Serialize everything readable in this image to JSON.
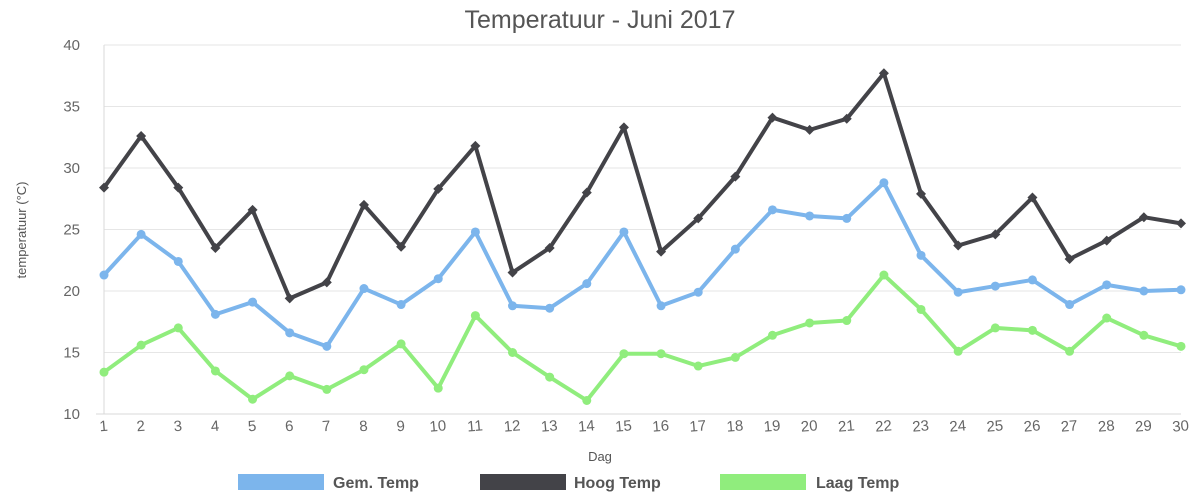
{
  "chart_data": {
    "type": "line",
    "title": "Temperatuur - Juni 2017",
    "xlabel": "Dag",
    "ylabel": "temperatuur (°C)",
    "ylim": [
      10,
      40
    ],
    "y_ticks": [
      10,
      15,
      20,
      25,
      30,
      35,
      40
    ],
    "grid": true,
    "legend_position": "bottom",
    "categories": [
      "1",
      "2",
      "3",
      "4",
      "5",
      "6",
      "7",
      "8",
      "9",
      "10",
      "11",
      "12",
      "13",
      "14",
      "15",
      "16",
      "17",
      "18",
      "19",
      "20",
      "21",
      "22",
      "23",
      "24",
      "25",
      "26",
      "27",
      "28",
      "29",
      "30"
    ],
    "series": [
      {
        "name": "Gem. Temp",
        "color": "#7cb5ec",
        "values": [
          21.3,
          24.6,
          22.4,
          18.1,
          19.1,
          16.6,
          15.5,
          20.2,
          18.9,
          21.0,
          24.8,
          18.8,
          18.6,
          20.6,
          24.8,
          18.8,
          19.9,
          23.4,
          26.6,
          26.1,
          25.9,
          28.8,
          22.9,
          19.9,
          20.4,
          20.9,
          18.9,
          20.5,
          20.0,
          20.1
        ]
      },
      {
        "name": "Hoog Temp",
        "color": "#434348",
        "values": [
          28.4,
          32.6,
          28.4,
          23.5,
          26.6,
          19.4,
          20.7,
          27.0,
          23.6,
          28.3,
          31.8,
          21.5,
          23.5,
          28.0,
          33.3,
          23.2,
          25.9,
          29.3,
          34.1,
          33.1,
          34.0,
          37.7,
          27.9,
          23.7,
          24.6,
          27.6,
          22.6,
          24.1,
          26.0,
          25.5
        ]
      },
      {
        "name": "Laag Temp",
        "color": "#90ed7d",
        "values": [
          13.4,
          15.6,
          17.0,
          13.5,
          11.2,
          13.1,
          12.0,
          13.6,
          15.7,
          12.1,
          18.0,
          15.0,
          13.0,
          11.1,
          14.9,
          14.9,
          13.9,
          14.6,
          16.4,
          17.4,
          17.6,
          21.3,
          18.5,
          15.1,
          17.0,
          16.8,
          15.1,
          17.8,
          16.4,
          15.5
        ]
      }
    ]
  }
}
